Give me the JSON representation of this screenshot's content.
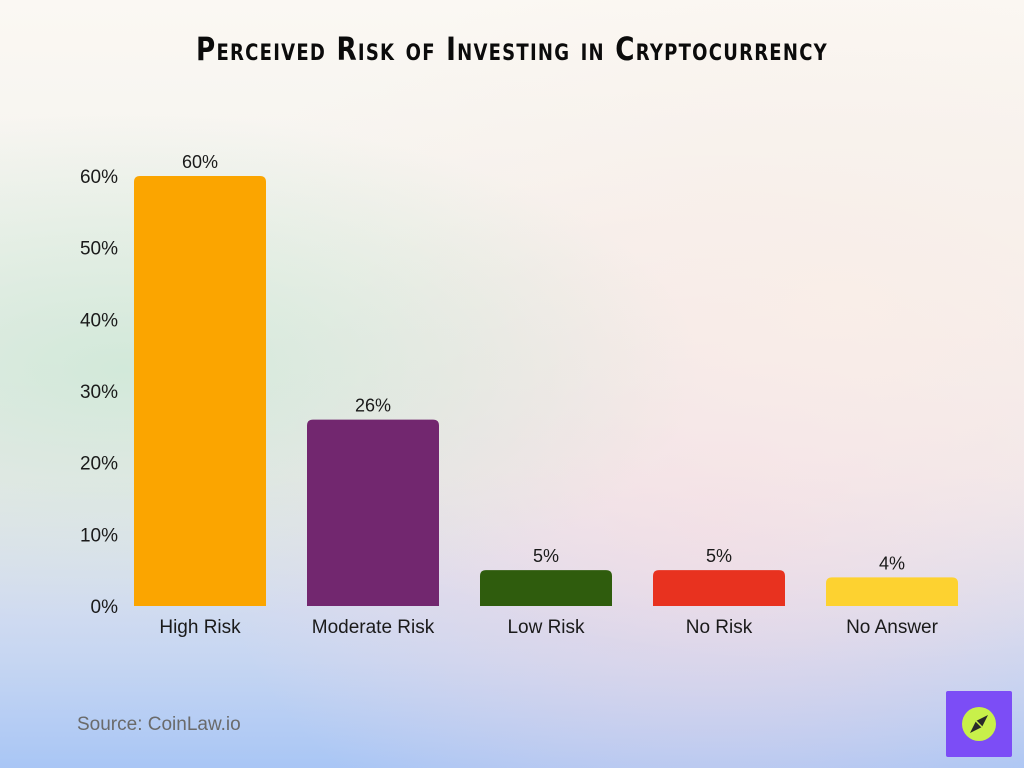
{
  "title": "Perceived Risk of Investing in Cryptocurrency",
  "source": "Source: CoinLaw.io",
  "logo": {
    "icon": "compass-icon",
    "bg_color": "#7c4df6",
    "circle_color": "#c8f04a"
  },
  "chart_data": {
    "type": "bar",
    "title": "Perceived Risk of Investing in Cryptocurrency",
    "categories": [
      "High Risk",
      "Moderate Risk",
      "Low Risk",
      "No Risk",
      "No Answer"
    ],
    "values": [
      60,
      26,
      5,
      5,
      4
    ],
    "value_labels": [
      "60%",
      "26%",
      "5%",
      "5%",
      "4%"
    ],
    "colors": [
      "#fba500",
      "#72276f",
      "#2f5c0d",
      "#e8321f",
      "#fdd230"
    ],
    "ylim": [
      0,
      60
    ],
    "yticks": [
      0,
      10,
      20,
      30,
      40,
      50,
      60
    ],
    "ytick_labels": [
      "0%",
      "10%",
      "20%",
      "30%",
      "40%",
      "50%",
      "60%"
    ],
    "xlabel": "",
    "ylabel": "",
    "grid": false,
    "legend": "none"
  }
}
